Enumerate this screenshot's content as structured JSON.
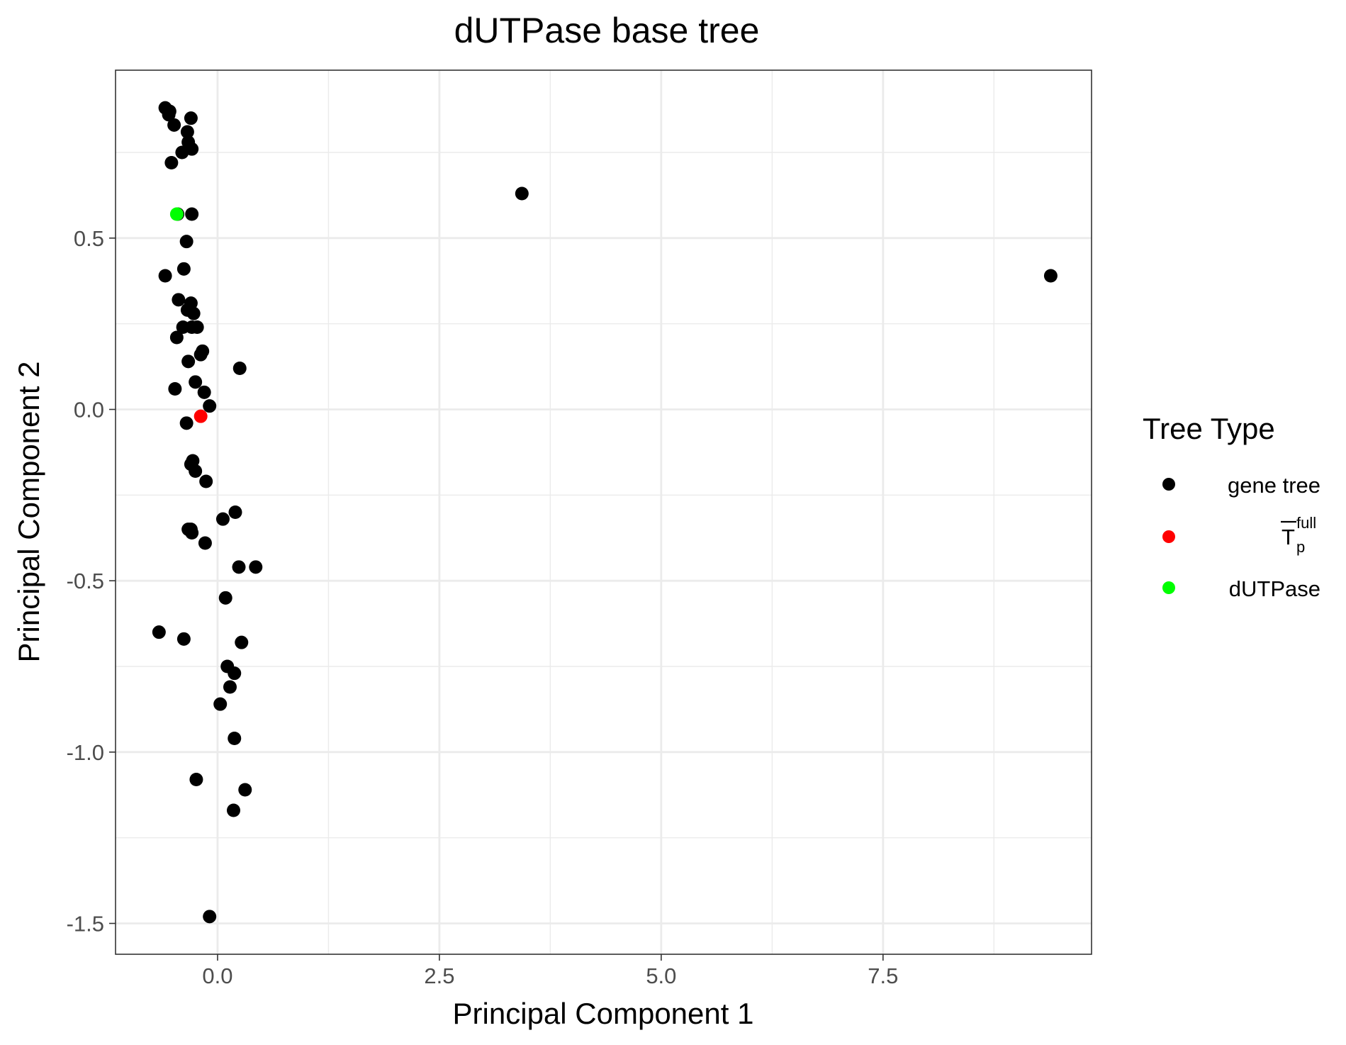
{
  "chart_data": {
    "type": "scatter",
    "title": "dUTPase base tree",
    "xlabel": "Principal Component 1",
    "ylabel": "Principal Component 2",
    "xlim": [
      -1.15,
      9.85
    ],
    "ylim": [
      -1.59,
      0.99
    ],
    "x_ticks": [
      0.0,
      2.5,
      5.0,
      7.5
    ],
    "x_tick_labels": [
      "0.0",
      "2.5",
      "5.0",
      "7.5"
    ],
    "y_ticks": [
      0.5,
      0.0,
      -0.5,
      -1.0,
      -1.5
    ],
    "y_tick_labels": [
      "0.5",
      "0.0",
      "-0.5",
      "-1.0",
      "-1.5"
    ],
    "grid": true,
    "legend": {
      "title": "Tree Type",
      "position": "right",
      "entries": [
        {
          "label": "gene tree",
          "color": "#000000"
        },
        {
          "label": "T",
          "overline": true,
          "subscript": "p",
          "superscript": "full",
          "color": "#ff0000"
        },
        {
          "label": "dUTPase",
          "color": "#00ff00"
        }
      ]
    },
    "series": [
      {
        "name": "gene tree",
        "color": "#000000",
        "points": [
          [
            -0.59,
            0.88
          ],
          [
            -0.55,
            0.86
          ],
          [
            -0.54,
            0.87
          ],
          [
            -0.49,
            0.83
          ],
          [
            -0.3,
            0.85
          ],
          [
            -0.34,
            0.81
          ],
          [
            -0.33,
            0.78
          ],
          [
            -0.29,
            0.76
          ],
          [
            -0.4,
            0.75
          ],
          [
            -0.52,
            0.72
          ],
          [
            -0.45,
            0.57
          ],
          [
            -0.29,
            0.57
          ],
          [
            -0.35,
            0.49
          ],
          [
            -0.38,
            0.41
          ],
          [
            -0.59,
            0.39
          ],
          [
            -0.44,
            0.32
          ],
          [
            -0.3,
            0.31
          ],
          [
            -0.34,
            0.29
          ],
          [
            -0.27,
            0.28
          ],
          [
            -0.39,
            0.24
          ],
          [
            -0.29,
            0.24
          ],
          [
            -0.23,
            0.24
          ],
          [
            -0.46,
            0.21
          ],
          [
            -0.17,
            0.17
          ],
          [
            -0.19,
            0.16
          ],
          [
            0.25,
            0.12
          ],
          [
            -0.33,
            0.14
          ],
          [
            -0.25,
            0.08
          ],
          [
            -0.48,
            0.06
          ],
          [
            -0.15,
            0.05
          ],
          [
            -0.09,
            0.01
          ],
          [
            -0.35,
            -0.04
          ],
          [
            -0.28,
            -0.15
          ],
          [
            -0.3,
            -0.16
          ],
          [
            -0.25,
            -0.18
          ],
          [
            -0.13,
            -0.21
          ],
          [
            0.2,
            -0.3
          ],
          [
            0.06,
            -0.32
          ],
          [
            -0.33,
            -0.35
          ],
          [
            -0.3,
            -0.35
          ],
          [
            -0.29,
            -0.36
          ],
          [
            -0.14,
            -0.39
          ],
          [
            0.24,
            -0.46
          ],
          [
            0.43,
            -0.46
          ],
          [
            0.09,
            -0.55
          ],
          [
            -0.66,
            -0.65
          ],
          [
            -0.38,
            -0.67
          ],
          [
            0.27,
            -0.68
          ],
          [
            0.11,
            -0.75
          ],
          [
            0.19,
            -0.77
          ],
          [
            0.14,
            -0.81
          ],
          [
            0.03,
            -0.86
          ],
          [
            0.19,
            -0.96
          ],
          [
            -0.24,
            -1.08
          ],
          [
            0.31,
            -1.11
          ],
          [
            0.18,
            -1.17
          ],
          [
            -0.09,
            -1.48
          ],
          [
            3.43,
            0.63
          ],
          [
            9.39,
            0.39
          ]
        ]
      },
      {
        "name": "T_p^full",
        "color": "#ff0000",
        "points": [
          [
            -0.19,
            -0.02
          ]
        ]
      },
      {
        "name": "dUTPase",
        "color": "#00ff00",
        "points": [
          [
            -0.46,
            0.57
          ]
        ]
      }
    ]
  }
}
